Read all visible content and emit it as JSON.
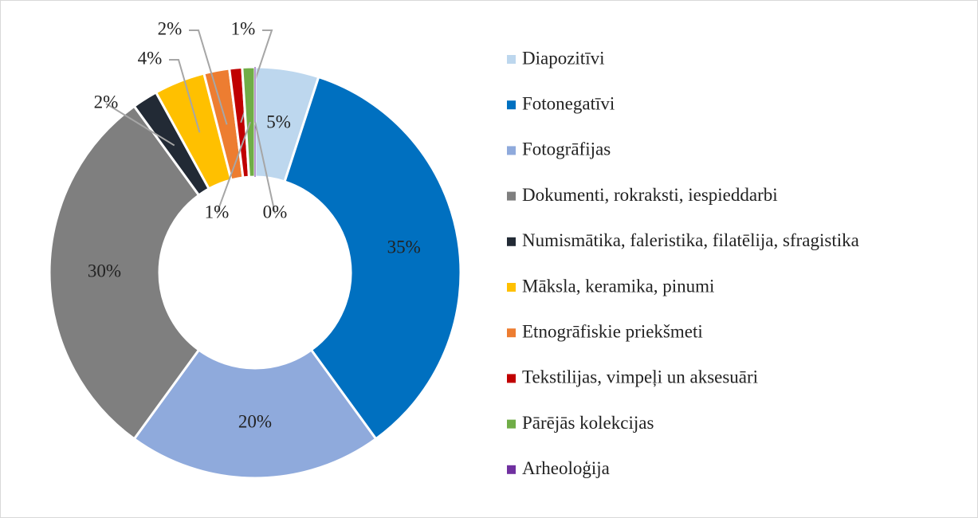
{
  "chart_data": {
    "type": "donut",
    "categories": [
      "Diapozitīvi",
      "Fotonegatīvi",
      "Fotogrāfijas",
      "Dokumenti, rokraksti, iespieddarbi",
      "Numismātika, faleristika, filatēlija, sfragistika",
      "Māksla, keramika, pinumi",
      "Etnogrāfiskie priekšmeti",
      "Tekstilijas, vimpeļi un aksesuāri",
      "Pārējās kolekcijas",
      "Arheoloģija"
    ],
    "values": [
      5,
      35,
      20,
      30,
      2,
      4,
      2,
      1,
      1,
      0
    ],
    "value_labels": [
      "5%",
      "35%",
      "20%",
      "30%",
      "2%",
      "4%",
      "2%",
      "1%",
      "1%",
      "0%"
    ],
    "colors": [
      "#bdd7ee",
      "#0070c0",
      "#8faadc",
      "#7f7f7f",
      "#222a35",
      "#ffc000",
      "#ed7d31",
      "#c00000",
      "#70ad47",
      "#7030a0"
    ],
    "legend": "right"
  }
}
